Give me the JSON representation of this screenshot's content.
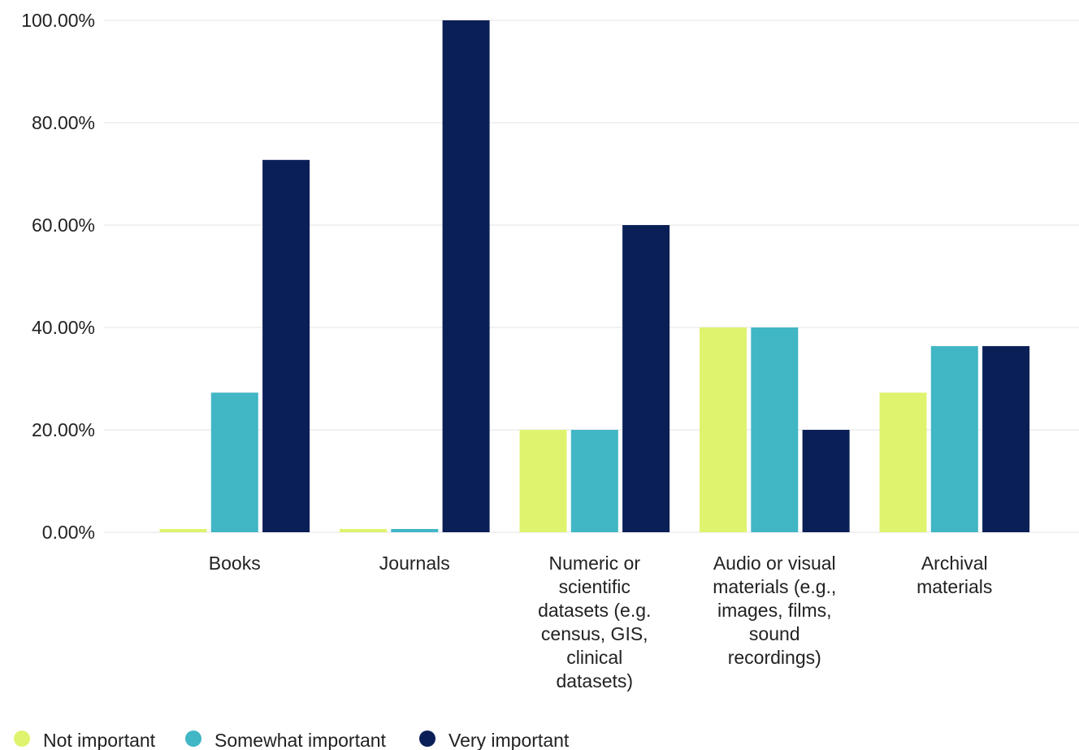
{
  "chart_data": {
    "type": "bar",
    "categories": [
      "Books",
      "Journals",
      "Numeric or scientific datasets (e.g. census, GIS, clinical datasets)",
      "Audio or visual materials (e.g., images, films, sound recordings)",
      "Archival materials"
    ],
    "category_label_lines": [
      [
        "Books"
      ],
      [
        "Journals"
      ],
      [
        "Numeric or",
        "scientific",
        "datasets (e.g.",
        "census, GIS,",
        "clinical",
        "datasets)"
      ],
      [
        "Audio or visual",
        "materials (e.g.,",
        "images, films,",
        "sound",
        "recordings)"
      ],
      [
        "Archival",
        "materials"
      ]
    ],
    "series": [
      {
        "name": "Not important",
        "color": "#e0f36f",
        "values": [
          0,
          0,
          20,
          40,
          27.27
        ]
      },
      {
        "name": "Somewhat important",
        "color": "#41b6c4",
        "values": [
          27.27,
          0,
          20,
          40,
          36.36
        ]
      },
      {
        "name": "Very important",
        "color": "#0b1f57",
        "values": [
          72.73,
          100,
          60,
          20,
          36.36
        ]
      }
    ],
    "ylim": [
      0,
      100
    ],
    "y_ticks": [
      0,
      20,
      40,
      60,
      80,
      100
    ],
    "y_tick_labels": [
      "0.00%",
      "20.00%",
      "40.00%",
      "60.00%",
      "80.00%",
      "100.00%"
    ],
    "grid": true,
    "gridline_color": "#e3e3e3",
    "legend_position": "bottom-left",
    "title": "",
    "xlabel": "",
    "ylabel": ""
  }
}
